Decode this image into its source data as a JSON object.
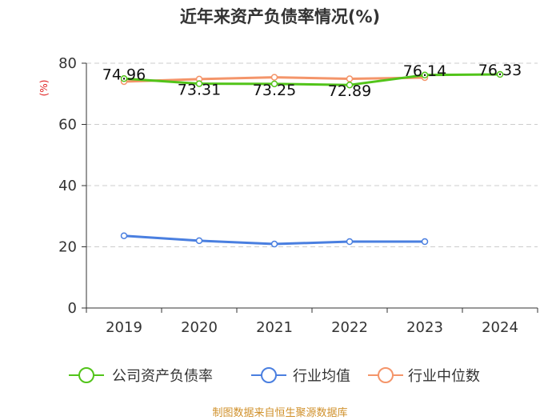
{
  "chart_data": {
    "type": "line",
    "title": "近年来资产负债率情况(%)",
    "ylabel": "(%)",
    "xlabel": "",
    "categories": [
      "2019",
      "2020",
      "2021",
      "2022",
      "2023",
      "2024"
    ],
    "ylim": [
      0,
      80
    ],
    "yticks": [
      "0",
      "20",
      "40",
      "60",
      "80"
    ],
    "grid": true,
    "legend_position": "bottom",
    "series": [
      {
        "name": "公司资产负债率",
        "color": "#52c41a",
        "values": [
          74.96,
          73.31,
          73.25,
          72.89,
          76.14,
          76.33
        ],
        "labels": [
          "74.96",
          "73.31",
          "73.25",
          "72.89",
          "76.14",
          "76.33"
        ]
      },
      {
        "name": "行业均值",
        "color": "#4a7fe0",
        "values": [
          23.6,
          22.0,
          20.9,
          21.7,
          21.7,
          null
        ]
      },
      {
        "name": "行业中位数",
        "color": "#f4956a",
        "values": [
          74.0,
          74.8,
          75.4,
          74.9,
          75.3,
          null
        ]
      }
    ]
  },
  "source": "制图数据来自恒生聚源数据库"
}
